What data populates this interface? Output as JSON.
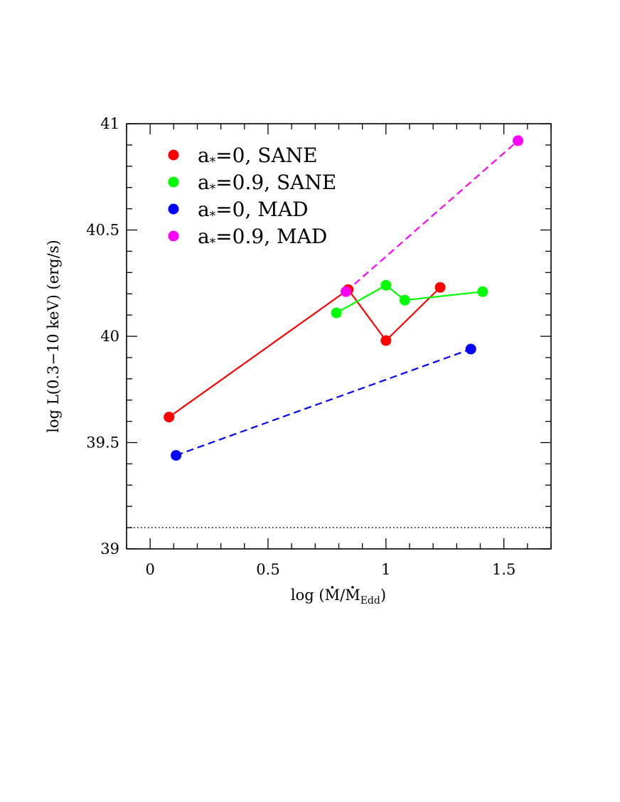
{
  "chart_data": {
    "type": "scatter",
    "xlabel_prefix": "log (",
    "xlabel_mdot": "M",
    "xlabel_slash": "/",
    "xlabel_sub": "Edd",
    "xlabel_suffix": ")",
    "ylabel": "log L(0.3−10 keV) (erg/s)",
    "xlim": [
      -0.1,
      1.7
    ],
    "ylim": [
      39,
      41
    ],
    "x_ticks": [
      0,
      0.5,
      1,
      1.5
    ],
    "x_tick_labels": [
      "0",
      "0.5",
      "1",
      "1.5"
    ],
    "y_ticks": [
      39,
      39.5,
      40,
      40.5,
      41
    ],
    "y_tick_labels": [
      "39",
      "39.5",
      "40",
      "40.5",
      "41"
    ],
    "x_minor_step": 0.1,
    "y_minor_step": 0.1,
    "grid": false,
    "legend_position": "top-left",
    "reference_line": {
      "y": 39.1,
      "style": "dotted",
      "color": "#000000"
    },
    "series": [
      {
        "legend_base": "a",
        "legend_sub": "*",
        "legend_rest": "=0,  SANE",
        "color": "#ff0000",
        "line": "solid",
        "x": [
          0.08,
          0.84,
          1.0,
          1.23
        ],
        "y": [
          39.62,
          40.22,
          39.98,
          40.23
        ]
      },
      {
        "legend_base": "a",
        "legend_sub": "*",
        "legend_rest": "=0.9,  SANE",
        "color": "#00ff00",
        "line": "solid",
        "x": [
          0.79,
          1.0,
          1.08,
          1.41
        ],
        "y": [
          40.11,
          40.24,
          40.17,
          40.21
        ]
      },
      {
        "legend_base": "a",
        "legend_sub": "*",
        "legend_rest": "=0,  MAD",
        "color": "#0000ff",
        "line": "dashed",
        "x": [
          0.11,
          1.36
        ],
        "y": [
          39.44,
          39.94
        ]
      },
      {
        "legend_base": "a",
        "legend_sub": "*",
        "legend_rest": "=0.9,  MAD",
        "color": "#ff00ff",
        "line": "dashed",
        "x": [
          0.83,
          1.56
        ],
        "y": [
          40.21,
          40.92
        ]
      }
    ]
  }
}
